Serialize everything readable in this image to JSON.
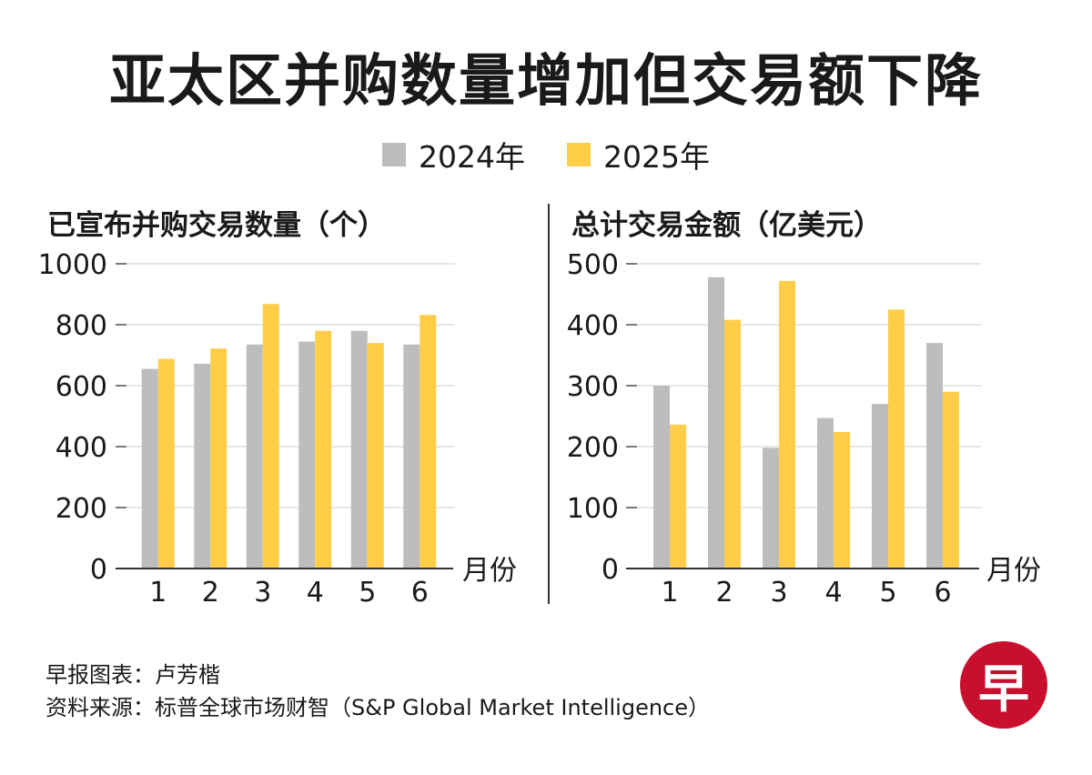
{
  "title": "亚太区并购数量增加但交易额下降",
  "legend": [
    {
      "label": "2024年",
      "color": "#bdbdbd"
    },
    {
      "label": "2025年",
      "color": "#ffcd48"
    }
  ],
  "chart_data": [
    {
      "type": "bar",
      "title": "已宣布并购交易数量（个）",
      "xlabel": "月份",
      "ylabel": "",
      "categories": [
        "1",
        "2",
        "3",
        "4",
        "5",
        "6"
      ],
      "yticks": [
        "0",
        "200",
        "400",
        "600",
        "800",
        "1000"
      ],
      "ylim": [
        0,
        1000
      ],
      "grid": true,
      "series": [
        {
          "name": "2024年",
          "values": [
            655,
            672,
            735,
            745,
            780,
            735
          ]
        },
        {
          "name": "2025年",
          "values": [
            688,
            722,
            868,
            780,
            740,
            832
          ]
        }
      ]
    },
    {
      "type": "bar",
      "title": "总计交易金额（亿美元）",
      "xlabel": "月份",
      "ylabel": "",
      "categories": [
        "1",
        "2",
        "3",
        "4",
        "5",
        "6"
      ],
      "yticks": [
        "0",
        "100",
        "200",
        "300",
        "400",
        "500"
      ],
      "ylim": [
        0,
        500
      ],
      "grid": true,
      "series": [
        {
          "name": "2024年",
          "values": [
            300,
            478,
            198,
            247,
            270,
            370
          ]
        },
        {
          "name": "2025年",
          "values": [
            236,
            408,
            472,
            224,
            425,
            290
          ]
        }
      ]
    }
  ],
  "footer": {
    "credit": "早报图表：卢芳楷",
    "source": "资料来源：标普全球市场财智（S&P Global Market Intelligence）"
  },
  "logo_text": "早"
}
